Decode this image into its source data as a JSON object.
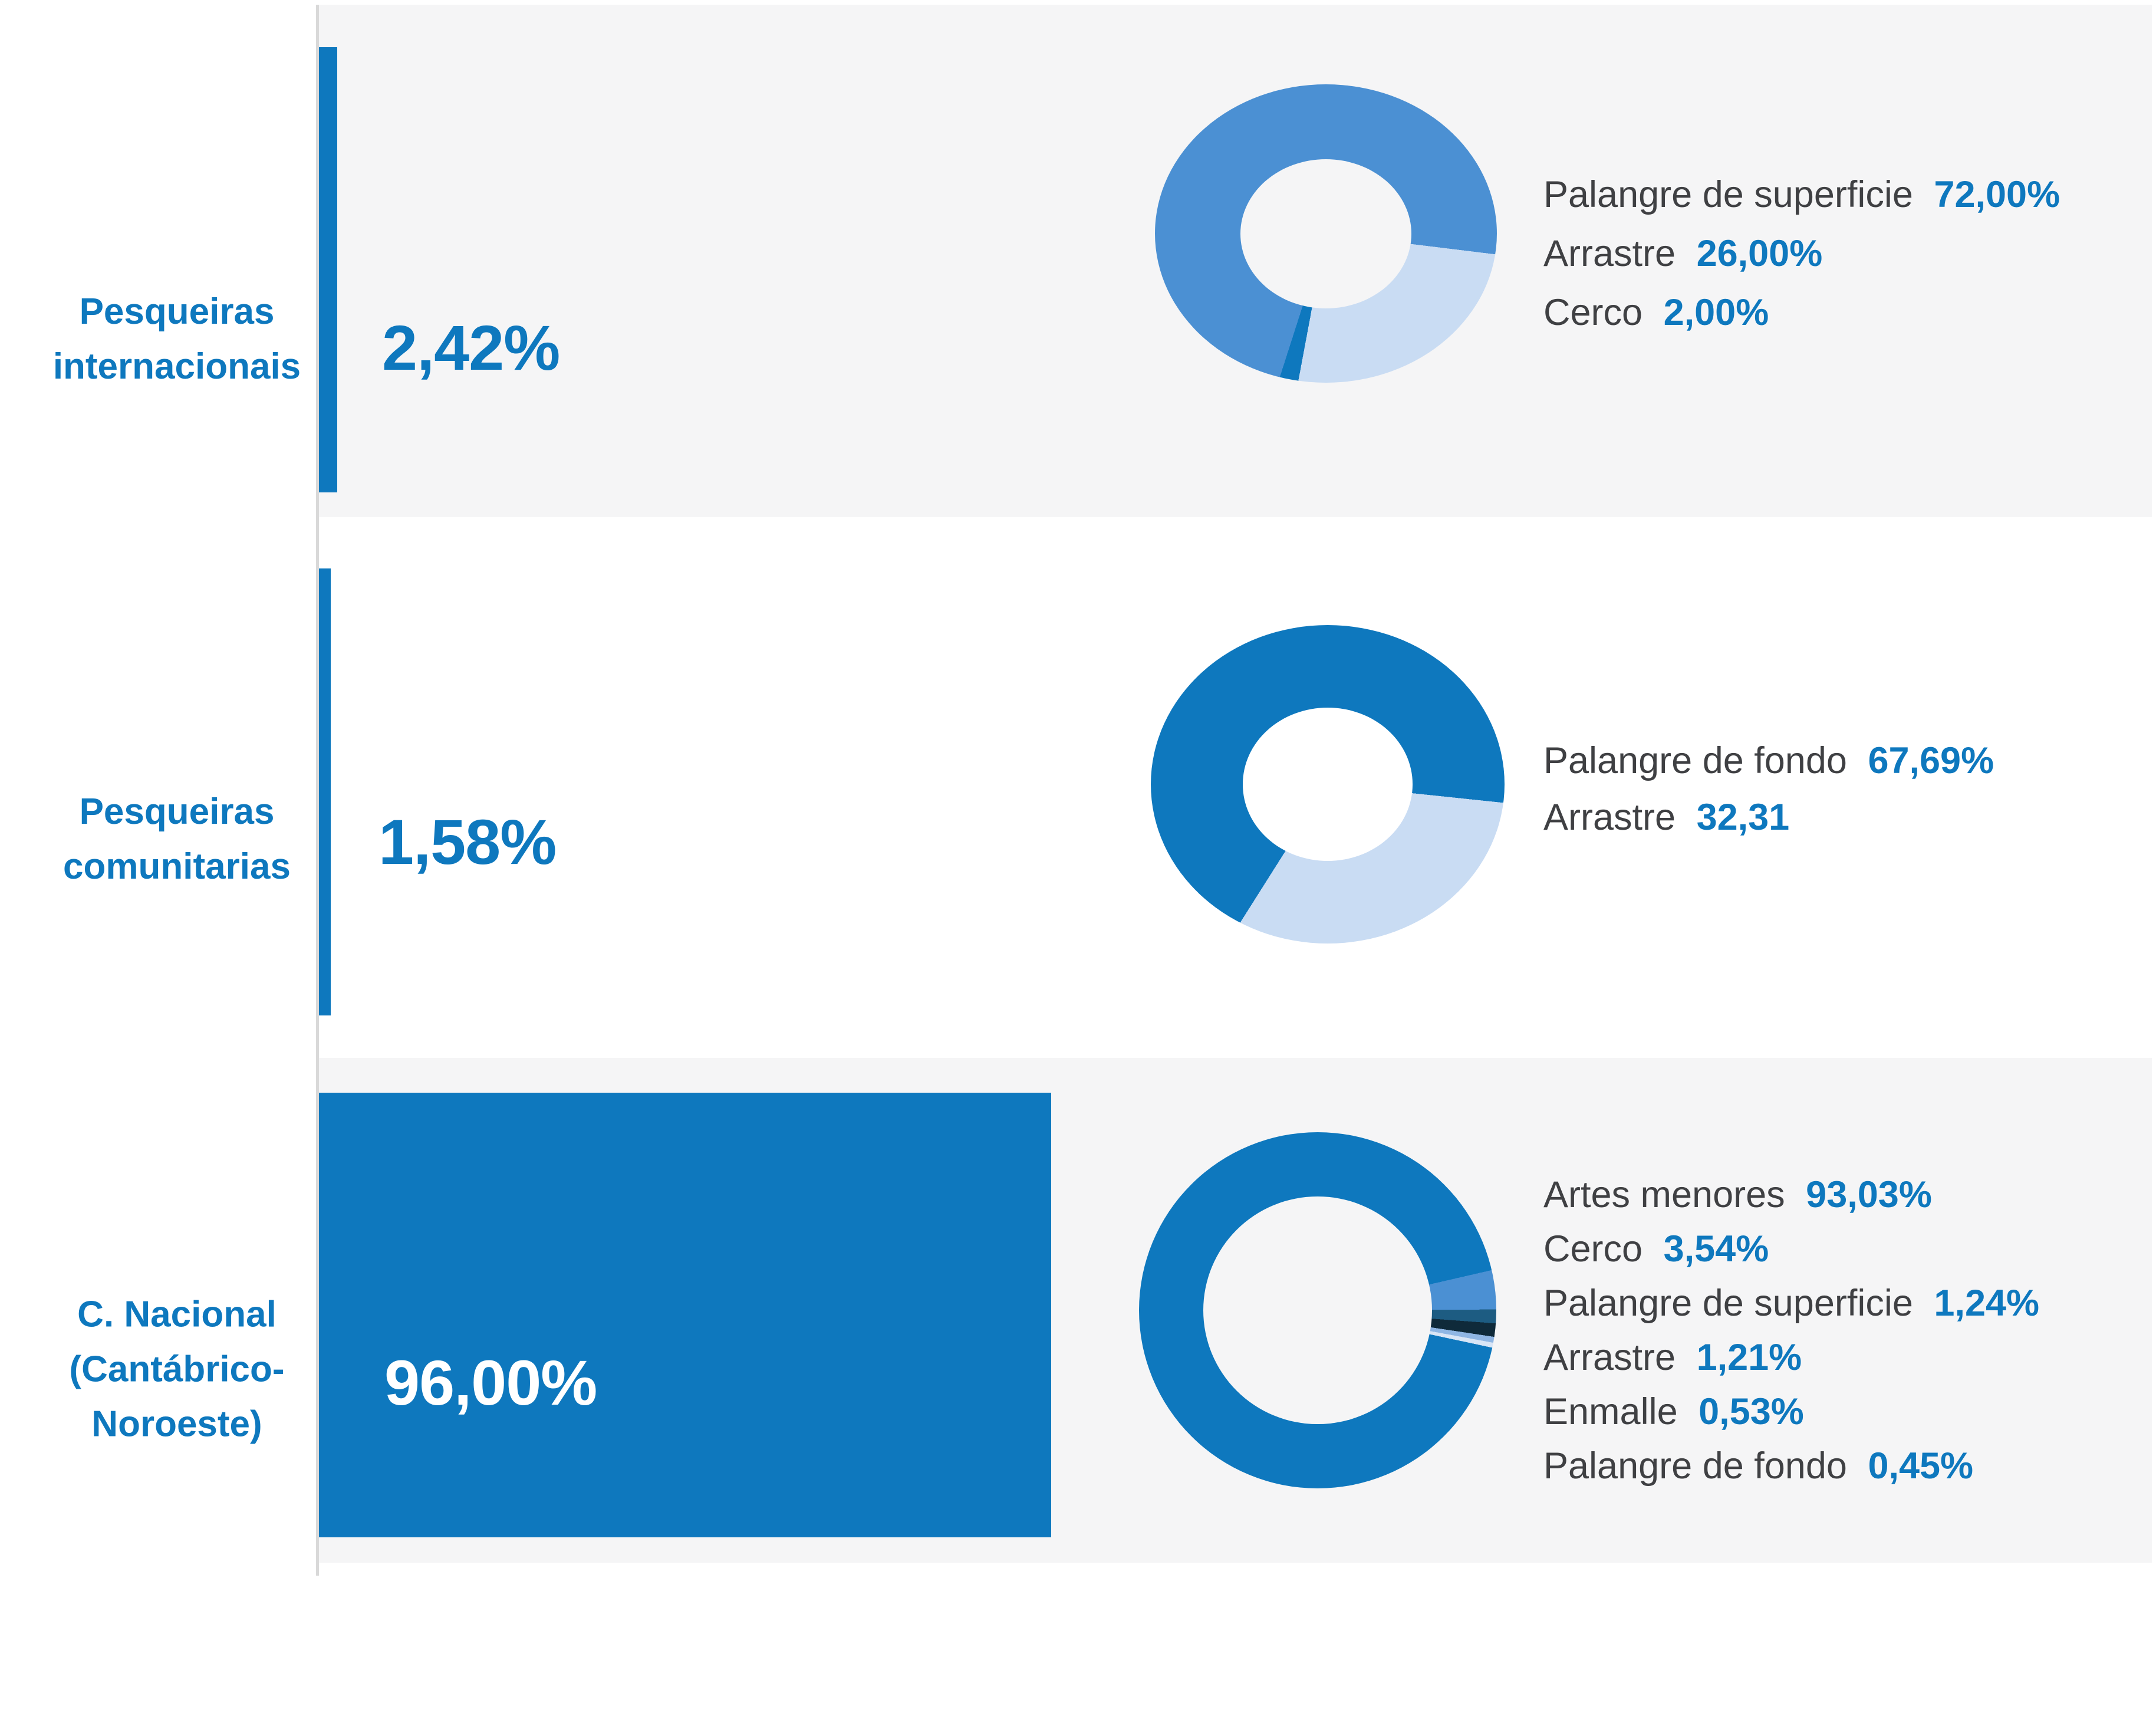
{
  "chart_data": {
    "type": "bar",
    "title": "",
    "unit": "%",
    "xlim": [
      0,
      100
    ],
    "grid": false,
    "legend_position": "right-of-donut",
    "axis": {
      "color": "#D9D9D9"
    },
    "categories": [
      "Pesqueiras internacionais",
      "Pesqueiras comunitarias",
      "C. Nacional (Cantábrico-Noroeste)"
    ],
    "values": [
      2.42,
      1.58,
      96.0
    ],
    "rows": [
      {
        "category_lines": [
          "Pesqueiras",
          "internacionais"
        ],
        "total": {
          "value": 2.42,
          "display": "2,42%"
        },
        "total_color": "#0E78BE",
        "band_bg": "#F5F5F6",
        "bar_color": "#0E78BE",
        "donut": {
          "type": "pie",
          "start_angle_deg": 97,
          "hole_ratio": 0.5,
          "hole_color": "#F5F5F6",
          "draw_sequence": [
            1,
            2,
            0
          ],
          "slices": [
            {
              "label": "Palangre de superficie",
              "value": 72.0,
              "display": "72,00%",
              "color": "#4B90D3"
            },
            {
              "label": "Arrastre",
              "value": 26.0,
              "display": "26,00%",
              "color": "#C9DCF3"
            },
            {
              "label": "Cerco",
              "value": 2.0,
              "display": "2,00%",
              "color": "#0E78BE"
            }
          ]
        }
      },
      {
        "category_lines": [
          "Pesqueiras",
          "comunitarias"
        ],
        "total": {
          "value": 1.58,
          "display": "1,58%"
        },
        "total_color": "#0E78BE",
        "band_bg": "#FFFFFF",
        "bar_color": "#0E78BE",
        "donut": {
          "type": "pie",
          "start_angle_deg": 96,
          "hole_ratio": 0.48,
          "hole_color": "#FFFFFF",
          "draw_sequence": [
            1,
            0
          ],
          "slices": [
            {
              "label": "Palangre de fondo",
              "value": 67.69,
              "display": "67,69%",
              "color": "#0E78BE"
            },
            {
              "label": "Arrastre",
              "value": 32.31,
              "display": "32,31",
              "color": "#C9DCF3"
            }
          ]
        }
      },
      {
        "category_lines": [
          "C. Nacional",
          "(Cantábrico-",
          "Noroeste)"
        ],
        "total": {
          "value": 96.0,
          "display": "96,00%"
        },
        "total_color": "#FFFFFF",
        "band_bg": "#F5F5F6",
        "bar_color": "#0E78BE",
        "donut": {
          "type": "pie",
          "start_angle_deg": 77,
          "hole_ratio": 0.64,
          "hole_color": "#F5F5F6",
          "draw_sequence": [
            1,
            2,
            3,
            4,
            5,
            0
          ],
          "slices": [
            {
              "label": "Artes menores",
              "value": 93.03,
              "display": "93,03%",
              "color": "#0E78BE"
            },
            {
              "label": "Cerco",
              "value": 3.54,
              "display": "3,54%",
              "color": "#4B90D3"
            },
            {
              "label": "Palangre de superficie",
              "value": 1.24,
              "display": "1,24%",
              "color": "#1D5C82"
            },
            {
              "label": "Arrastre",
              "value": 1.21,
              "display": "1,21%",
              "color": "#0F2A3A"
            },
            {
              "label": "Enmalle",
              "value": 0.53,
              "display": "0,53%",
              "color": "#8FB6E4"
            },
            {
              "label": "Palangre de fondo",
              "value": 0.45,
              "display": "0,45%",
              "color": "#D8E5F6"
            }
          ]
        }
      }
    ]
  },
  "text_colors": {
    "category_blue": "#0E78BE",
    "legend_label_gray": "#3F4043",
    "legend_value_blue": "#0E78BE"
  }
}
